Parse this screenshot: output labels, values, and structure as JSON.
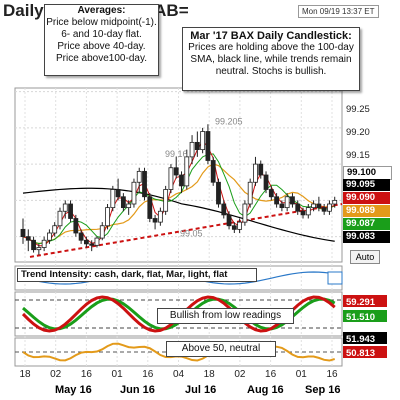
{
  "title": "Daily BAX.CA3M BAB=",
  "date_stamp": "Mon 09/19 13:37 ET",
  "averages_box": {
    "title": "Averages:",
    "lines": [
      "Price below midpoint(-1).",
      "6- and  10-day flat.",
      "Price above 40-day.",
      "Price above100-day."
    ]
  },
  "commentary_box": {
    "title": "Mar '17 BAX Daily Candlestick:",
    "lines": [
      "Prices are holding above the 100-day",
      "SMA, black line, while trends remain",
      "neutral. Stochs is bullish."
    ]
  },
  "trend_intensity_text": "Trend Intensity: cash, dark, flat, Mar, light, flat",
  "stoch_note": "Bullish from low readings",
  "rsi_note": "Above 50, neutral",
  "auto_label": "Auto",
  "colors": {
    "up": "#1a9e1a",
    "down": "#cc1111",
    "sma100": "#000000",
    "sma40": "#e39a1a",
    "trendline": "#cc1111"
  },
  "chart_data": {
    "type": "candlestick",
    "price_axis": {
      "ticks": [
        "99.25",
        "99.20",
        "99.15",
        "99.10",
        "99.05"
      ],
      "ylim": [
        99.015,
        99.255
      ]
    },
    "price_labels": [
      {
        "value": "99.100",
        "color": "#ffffff",
        "text_color": "#000000"
      },
      {
        "value": "99.095",
        "color": "#000000",
        "text_color": "#ffffff"
      },
      {
        "value": "99.090",
        "color": "#cc1111",
        "text_color": "#ffffff"
      },
      {
        "value": "99.089",
        "color": "#e39a1a",
        "text_color": "#ffffff"
      },
      {
        "value": "99.087",
        "color": "#1a9e1a",
        "text_color": "#ffffff"
      },
      {
        "value": "99.083",
        "color": "#000000",
        "text_color": "#ffffff"
      }
    ],
    "annotations": [
      "99.205",
      "99.16",
      "99.05"
    ],
    "date_axis": {
      "day_ticks": [
        "18",
        "02",
        "16",
        "01",
        "16",
        "04",
        "18",
        "02",
        "16",
        "01",
        "16"
      ],
      "month_labels": [
        "May 16",
        "Jun 16",
        "Jul 16",
        "Aug 16",
        "Sep 16"
      ]
    },
    "candles": [
      [
        99.06,
        99.075,
        99.04,
        99.05
      ],
      [
        99.05,
        99.06,
        99.03,
        99.045
      ],
      [
        99.045,
        99.05,
        99.028,
        99.032
      ],
      [
        99.032,
        99.04,
        99.025,
        99.035
      ],
      [
        99.035,
        99.05,
        99.03,
        99.045
      ],
      [
        99.045,
        99.06,
        99.04,
        99.055
      ],
      [
        99.055,
        99.07,
        99.05,
        99.065
      ],
      [
        99.065,
        99.09,
        99.06,
        99.085
      ],
      [
        99.085,
        99.1,
        99.075,
        99.095
      ],
      [
        99.095,
        99.1,
        99.07,
        99.075
      ],
      [
        99.075,
        99.08,
        99.05,
        99.055
      ],
      [
        99.055,
        99.06,
        99.04,
        99.045
      ],
      [
        99.045,
        99.05,
        99.035,
        99.04
      ],
      [
        99.04,
        99.045,
        99.03,
        99.038
      ],
      [
        99.038,
        99.05,
        99.035,
        99.048
      ],
      [
        99.048,
        99.07,
        99.045,
        99.065
      ],
      [
        99.065,
        99.095,
        99.06,
        99.09
      ],
      [
        99.09,
        99.12,
        99.085,
        99.115
      ],
      [
        99.115,
        99.13,
        99.1,
        99.105
      ],
      [
        99.105,
        99.11,
        99.085,
        99.09
      ],
      [
        99.09,
        99.1,
        99.08,
        99.095
      ],
      [
        99.095,
        99.13,
        99.09,
        99.125
      ],
      [
        99.125,
        99.145,
        99.11,
        99.14
      ],
      [
        99.14,
        99.145,
        99.1,
        99.105
      ],
      [
        99.105,
        99.11,
        99.07,
        99.075
      ],
      [
        99.075,
        99.08,
        99.06,
        99.07
      ],
      [
        99.07,
        99.09,
        99.065,
        99.085
      ],
      [
        99.085,
        99.12,
        99.08,
        99.115
      ],
      [
        99.115,
        99.15,
        99.11,
        99.145
      ],
      [
        99.145,
        99.16,
        99.13,
        99.135
      ],
      [
        99.135,
        99.14,
        99.11,
        99.12
      ],
      [
        99.12,
        99.17,
        99.115,
        99.16
      ],
      [
        99.16,
        99.19,
        99.15,
        99.18
      ],
      [
        99.18,
        99.195,
        99.16,
        99.17
      ],
      [
        99.17,
        99.2,
        99.165,
        99.195
      ],
      [
        99.195,
        99.205,
        99.15,
        99.155
      ],
      [
        99.155,
        99.16,
        99.12,
        99.125
      ],
      [
        99.125,
        99.13,
        99.09,
        99.095
      ],
      [
        99.095,
        99.1,
        99.075,
        99.08
      ],
      [
        99.08,
        99.085,
        99.06,
        99.065
      ],
      [
        99.065,
        99.07,
        99.055,
        99.06
      ],
      [
        99.06,
        99.075,
        99.055,
        99.07
      ],
      [
        99.07,
        99.1,
        99.065,
        99.095
      ],
      [
        99.095,
        99.13,
        99.09,
        99.125
      ],
      [
        99.125,
        99.16,
        99.12,
        99.15
      ],
      [
        99.15,
        99.155,
        99.13,
        99.135
      ],
      [
        99.135,
        99.14,
        99.11,
        99.115
      ],
      [
        99.115,
        99.12,
        99.1,
        99.105
      ],
      [
        99.105,
        99.11,
        99.09,
        99.095
      ],
      [
        99.095,
        99.1,
        99.085,
        99.09
      ],
      [
        99.09,
        99.11,
        99.085,
        99.105
      ],
      [
        99.105,
        99.11,
        99.09,
        99.095
      ],
      [
        99.095,
        99.1,
        99.08,
        99.085
      ],
      [
        99.085,
        99.09,
        99.075,
        99.08
      ],
      [
        99.08,
        99.095,
        99.075,
        99.09
      ],
      [
        99.09,
        99.1,
        99.085,
        99.095
      ],
      [
        99.095,
        99.105,
        99.085,
        99.09
      ],
      [
        99.09,
        99.095,
        99.08,
        99.085
      ],
      [
        99.085,
        99.1,
        99.08,
        99.095
      ],
      [
        99.095,
        99.105,
        99.09,
        99.1
      ]
    ]
  }
}
